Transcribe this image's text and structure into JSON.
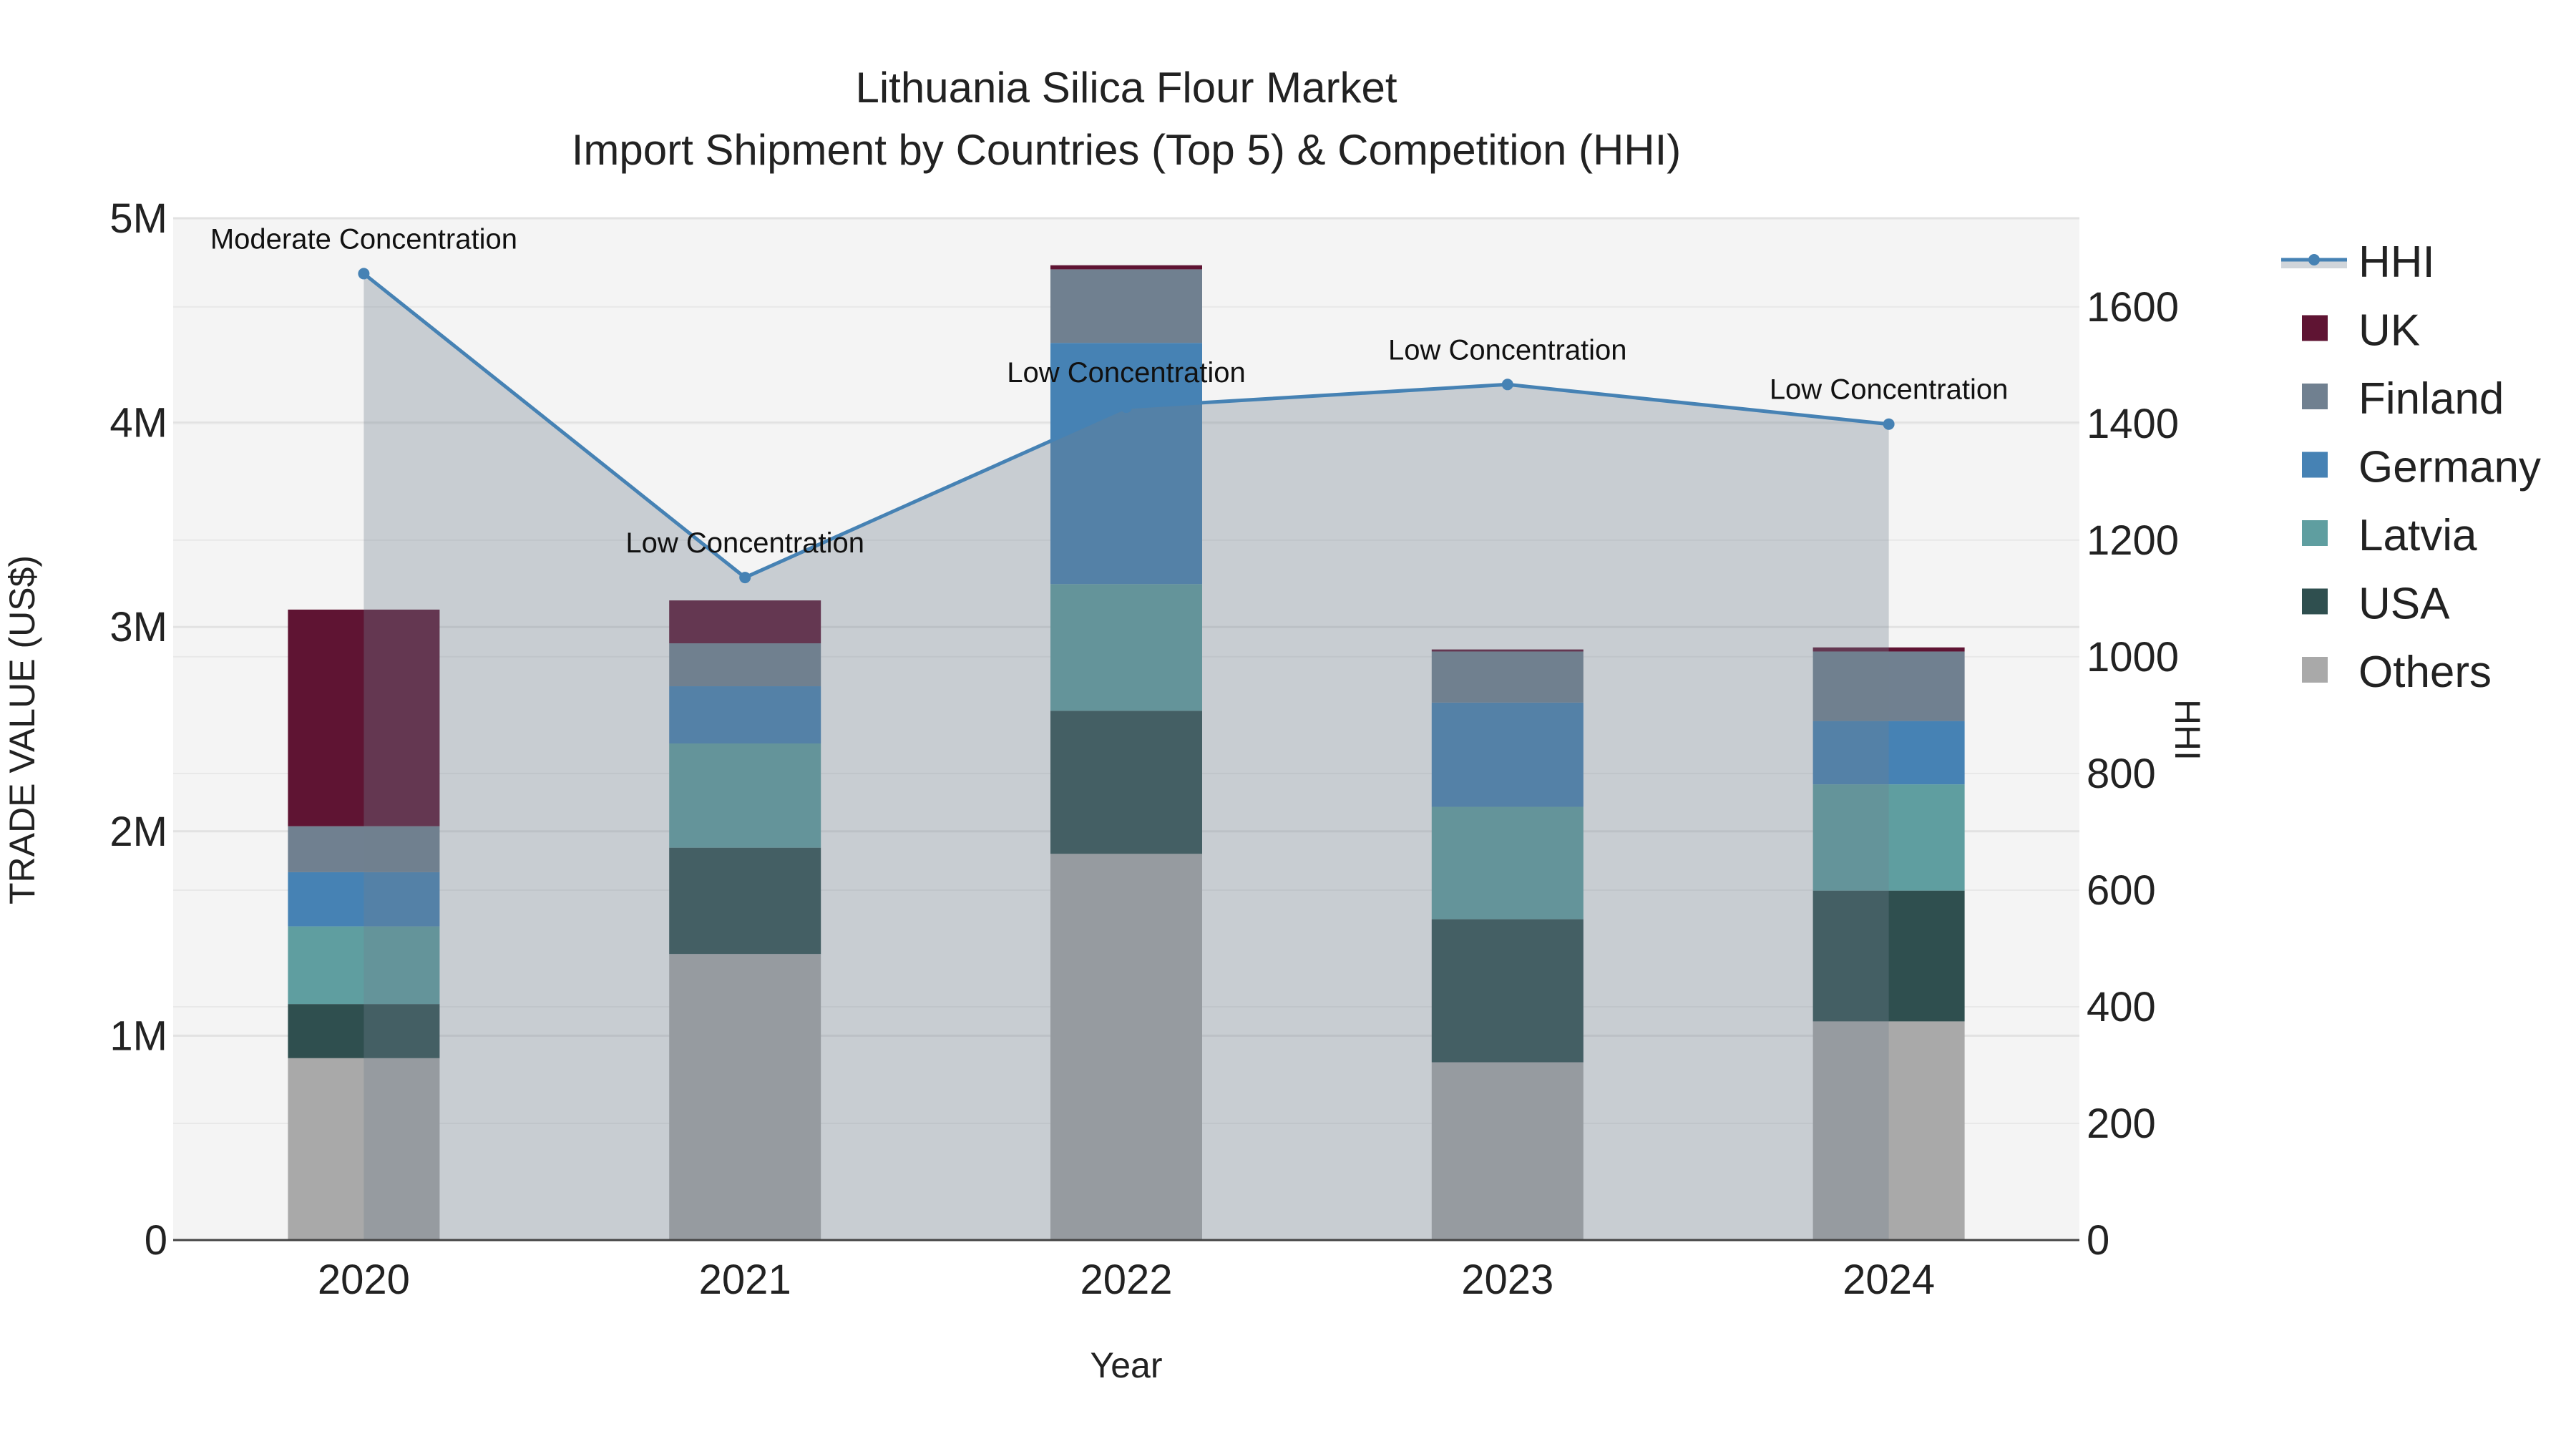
{
  "chart_data": {
    "type": "bar",
    "title": "Lithuania Silica Flour Market",
    "subtitle": "Import Shipment by Countries (Top 5) & Competition (HHI)",
    "xlabel": "Year",
    "ylabel": "TRADE VALUE (US$)",
    "y2label": "HHI",
    "categories": [
      "2020",
      "2021",
      "2022",
      "2023",
      "2024"
    ],
    "ylim": [
      0,
      5000000
    ],
    "y_ticks": [
      0,
      1000000,
      2000000,
      3000000,
      4000000,
      5000000
    ],
    "y_tick_labels": [
      "0",
      "1M",
      "2M",
      "3M",
      "4M",
      "5M"
    ],
    "y2lim": [
      0,
      1752
    ],
    "y2_ticks": [
      0,
      200,
      400,
      600,
      800,
      1000,
      1200,
      1400,
      1600
    ],
    "y2_tick_labels": [
      "0",
      "200",
      "400",
      "600",
      "800",
      "1000",
      "1200",
      "1400",
      "1600"
    ],
    "grid": true,
    "legend_placement": "right",
    "series": [
      {
        "name": "Others",
        "color": "#a9a9a9",
        "values": [
          890000,
          1400000,
          1890000,
          870000,
          1070000
        ]
      },
      {
        "name": "USA",
        "color": "#2f4f4f",
        "values": [
          265000,
          520000,
          700000,
          700000,
          640000
        ]
      },
      {
        "name": "Latvia",
        "color": "#5f9ea0",
        "values": [
          380000,
          510000,
          620000,
          550000,
          520000
        ]
      },
      {
        "name": "Germany",
        "color": "#4682b4",
        "values": [
          265000,
          280000,
          1180000,
          510000,
          310000
        ]
      },
      {
        "name": "Finland",
        "color": "#708090",
        "values": [
          225000,
          210000,
          360000,
          250000,
          340000
        ]
      },
      {
        "name": "UK",
        "color": "#5f1433",
        "values": [
          1060000,
          210000,
          20000,
          10000,
          20000
        ]
      }
    ],
    "hhi": {
      "name": "HHI",
      "color": "#4682b4",
      "values": [
        1657,
        1136,
        1428,
        1467,
        1399
      ],
      "annotations": [
        "Moderate Concentration",
        "Low Concentration",
        "Low Concentration",
        "Low Concentration",
        "Low Concentration"
      ]
    },
    "legend_order": [
      "HHI",
      "UK",
      "Finland",
      "Germany",
      "Latvia",
      "USA",
      "Others"
    ]
  }
}
